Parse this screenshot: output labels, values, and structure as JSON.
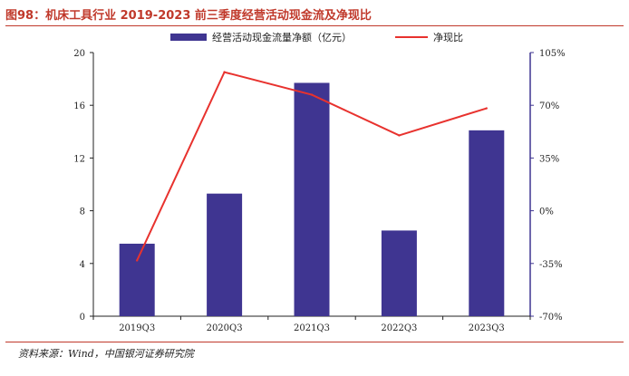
{
  "figure": {
    "title": "图98：机床工具行业 2019-2023 前三季度经营活动现金流及净现比",
    "source": "资料来源：Wind，中国银河证券研究院"
  },
  "chart_data": {
    "type": "bar",
    "categories": [
      "2019Q3",
      "2020Q3",
      "2021Q3",
      "2022Q3",
      "2023Q3"
    ],
    "series": [
      {
        "name": "经营活动现金流量净额（亿元）",
        "type": "bar",
        "axis": "left",
        "values": [
          5.5,
          9.3,
          17.7,
          6.5,
          14.1
        ]
      },
      {
        "name": "净现比",
        "type": "line",
        "axis": "right",
        "values": [
          -33,
          92,
          77,
          50,
          68
        ]
      }
    ],
    "y_left": {
      "min": 0,
      "max": 20,
      "ticks": [
        0,
        4,
        8,
        12,
        16,
        20
      ],
      "tick_labels": [
        "0",
        "4",
        "8",
        "12",
        "16",
        "20"
      ]
    },
    "y_right": {
      "min": -70,
      "max": 105,
      "ticks": [
        -70,
        -35,
        0,
        35,
        70,
        105
      ],
      "tick_labels": [
        "-70%",
        "-35%",
        "0%",
        "35%",
        "70%",
        "105%"
      ]
    },
    "grid": false,
    "legend_position": "top",
    "colors": {
      "bar": "#3f3591",
      "line": "#e8322e",
      "axis_right": "#3f3591",
      "axis_left": "#222222"
    }
  }
}
